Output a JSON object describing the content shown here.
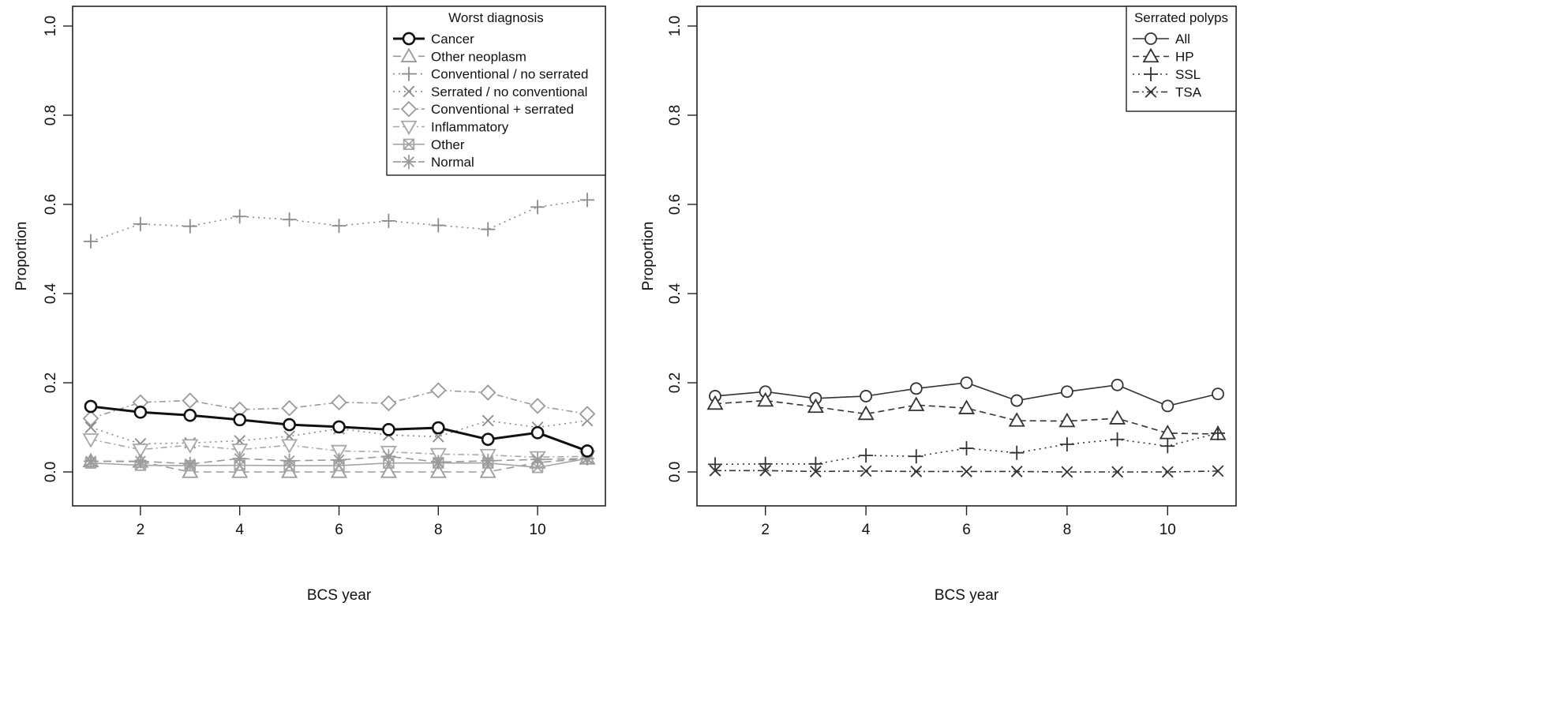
{
  "chart_data": [
    {
      "type": "line",
      "xlabel": "BCS year",
      "ylabel": "Proportion",
      "xlim": [
        0.6,
        11.4
      ],
      "ylim": [
        0,
        1.0
      ],
      "x_ticks": [
        2,
        4,
        6,
        8,
        10
      ],
      "x_tick_labels": [
        "2",
        "4",
        "6",
        "8",
        "10"
      ],
      "y_ticks": [
        0,
        0.2,
        0.4,
        0.6,
        0.8,
        1.0
      ],
      "y_tick_labels": [
        "0.0",
        "0.2",
        "0.4",
        "0.6",
        "0.8",
        "1.0"
      ],
      "grid": false,
      "legend": {
        "title": "Worst diagnosis",
        "placement": "top-right"
      },
      "x": [
        1,
        2,
        3,
        4,
        5,
        6,
        7,
        8,
        9,
        10,
        11
      ],
      "series": [
        {
          "name": "Cancer",
          "values": [
            0.147,
            0.134,
            0.127,
            0.117,
            0.106,
            0.101,
            0.095,
            0.099,
            0.073,
            0.088,
            0.047
          ],
          "color": "#111111",
          "dash": "solid",
          "marker": "circle",
          "width": 3
        },
        {
          "name": "Other neoplasm",
          "values": [
            0.024,
            0.023,
            0.0,
            0.0,
            0.0,
            0.0,
            0.0,
            0.0,
            0.0,
            0.021,
            0.03
          ],
          "color": "#9a9a9a",
          "dash": "longdash",
          "marker": "triangle",
          "width": 1.6
        },
        {
          "name": "Conventional / no serrated",
          "values": [
            0.517,
            0.556,
            0.551,
            0.573,
            0.566,
            0.552,
            0.563,
            0.553,
            0.544,
            0.594,
            0.61
          ],
          "color": "#8a8a8a",
          "dash": "dotted",
          "marker": "plus",
          "width": 1.6
        },
        {
          "name": "Serrated / no conventional",
          "values": [
            0.1,
            0.063,
            0.065,
            0.07,
            0.08,
            0.097,
            0.083,
            0.079,
            0.115,
            0.1,
            0.115
          ],
          "color": "#8a8a8a",
          "dash": "dotted",
          "marker": "x",
          "width": 1.6
        },
        {
          "name": "Conventional + serrated",
          "values": [
            0.12,
            0.156,
            0.16,
            0.14,
            0.143,
            0.156,
            0.154,
            0.183,
            0.178,
            0.148,
            0.13
          ],
          "color": "#9a9a9a",
          "dash": "dashdot",
          "marker": "diamond",
          "width": 1.6
        },
        {
          "name": "Inflammatory",
          "values": [
            0.073,
            0.05,
            0.06,
            0.05,
            0.06,
            0.047,
            0.045,
            0.04,
            0.038,
            0.033,
            0.035
          ],
          "color": "#a8a8a8",
          "dash": "dashdot",
          "marker": "invtriangle",
          "width": 1.6
        },
        {
          "name": "Other",
          "values": [
            0.02,
            0.015,
            0.014,
            0.015,
            0.014,
            0.014,
            0.02,
            0.02,
            0.02,
            0.01,
            0.03
          ],
          "color": "#a5a5a5",
          "dash": "solid",
          "marker": "boxx",
          "width": 1.6
        },
        {
          "name": "Normal",
          "values": [
            0.024,
            0.024,
            0.018,
            0.03,
            0.025,
            0.027,
            0.035,
            0.022,
            0.025,
            0.028,
            0.03
          ],
          "color": "#9a9a9a",
          "dash": "longdash",
          "marker": "asterisk",
          "width": 1.6
        }
      ]
    },
    {
      "type": "line",
      "xlabel": "BCS year",
      "ylabel": "Proportion",
      "xlim": [
        0.6,
        11.4
      ],
      "ylim": [
        0,
        1.0
      ],
      "x_ticks": [
        2,
        4,
        6,
        8,
        10
      ],
      "x_tick_labels": [
        "2",
        "4",
        "6",
        "8",
        "10"
      ],
      "y_ticks": [
        0,
        0.2,
        0.4,
        0.6,
        0.8,
        1.0
      ],
      "y_tick_labels": [
        "0.0",
        "0.2",
        "0.4",
        "0.6",
        "0.8",
        "1.0"
      ],
      "grid": false,
      "legend": {
        "title": "Serrated polyps",
        "placement": "top-right"
      },
      "x": [
        1,
        2,
        3,
        4,
        5,
        6,
        7,
        8,
        9,
        10,
        11
      ],
      "series": [
        {
          "name": "All",
          "values": [
            0.17,
            0.18,
            0.165,
            0.17,
            0.187,
            0.2,
            0.16,
            0.18,
            0.195,
            0.148,
            0.175
          ],
          "color": "#333333",
          "dash": "solid",
          "marker": "circle",
          "width": 1.6
        },
        {
          "name": "HP",
          "values": [
            0.153,
            0.16,
            0.146,
            0.13,
            0.15,
            0.143,
            0.115,
            0.114,
            0.12,
            0.087,
            0.085
          ],
          "color": "#333333",
          "dash": "dashed",
          "marker": "triangle",
          "width": 1.6
        },
        {
          "name": "SSL",
          "values": [
            0.017,
            0.018,
            0.018,
            0.037,
            0.035,
            0.053,
            0.043,
            0.062,
            0.073,
            0.058,
            0.087
          ],
          "color": "#333333",
          "dash": "dotted",
          "marker": "plus",
          "width": 1.6
        },
        {
          "name": "TSA",
          "values": [
            0.003,
            0.003,
            0.001,
            0.002,
            0.001,
            0.001,
            0.001,
            0.0,
            0.0,
            0.0,
            0.002
          ],
          "color": "#333333",
          "dash": "dashdot",
          "marker": "x",
          "width": 1.6
        }
      ]
    }
  ]
}
